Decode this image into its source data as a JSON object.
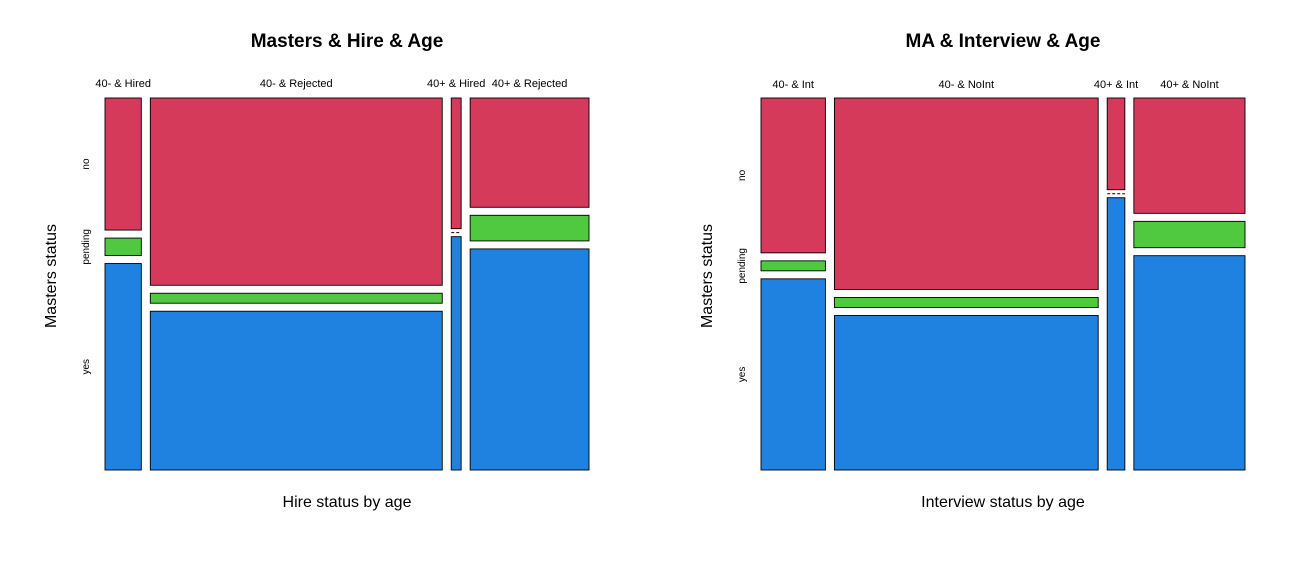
{
  "colors": {
    "no": "#D53A5B",
    "pending": "#50C840",
    "yes": "#2082E0"
  },
  "chart_data": [
    {
      "type": "mosaic",
      "title": "Masters & Hire & Age",
      "xlabel": "Hire status by age",
      "ylabel": "Masters status",
      "categories": [
        "40- & Hired",
        "40- & Rejected",
        "40+ & Hired",
        "40+ & Rejected"
      ],
      "column_widths": [
        0.077,
        0.619,
        0.021,
        0.252
      ],
      "rows": [
        "no",
        "pending",
        "yes"
      ],
      "row_labels": [
        "no",
        "pending",
        "yes"
      ],
      "proportions": [
        [
          0.371,
          0.049,
          0.58
        ],
        [
          0.526,
          0.028,
          0.446
        ],
        [
          0.359,
          0.0,
          0.641
        ],
        [
          0.307,
          0.072,
          0.621
        ]
      ]
    },
    {
      "type": "mosaic",
      "title": "MA & Interview & Age",
      "xlabel": "Interview status by age",
      "ylabel": "Masters status",
      "categories": [
        "40- & Int",
        "40- & NoInt",
        "40+ & Int",
        "40+ & NoInt"
      ],
      "column_widths": [
        0.135,
        0.553,
        0.037,
        0.233
      ],
      "rows": [
        "no",
        "pending",
        "yes"
      ],
      "row_labels": [
        "no",
        "pending",
        "yes"
      ],
      "proportions": [
        [
          0.435,
          0.028,
          0.537
        ],
        [
          0.538,
          0.028,
          0.434
        ],
        [
          0.252,
          0.0,
          0.748
        ],
        [
          0.324,
          0.074,
          0.602
        ]
      ]
    }
  ]
}
